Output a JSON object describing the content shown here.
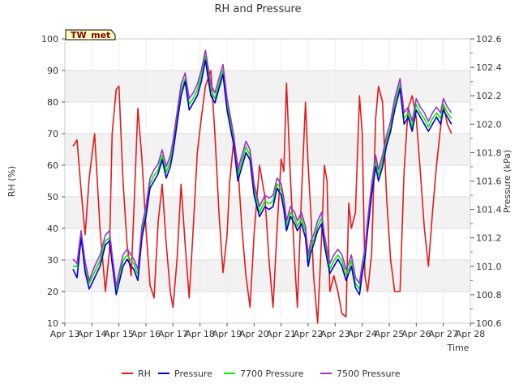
{
  "chart_data": {
    "type": "line",
    "title": "RH and Pressure",
    "xlabel": "Time",
    "ylabel_left": "RH (%)",
    "ylabel_right": "Pressure (kPa)",
    "badge": "TW_met",
    "x_ticks": [
      "Apr 13",
      "Apr 14",
      "Apr 15",
      "Apr 16",
      "Apr 17",
      "Apr 18",
      "Apr 19",
      "Apr 20",
      "Apr 21",
      "Apr 22",
      "Apr 23",
      "Apr 24",
      "Apr 25",
      "Apr 26",
      "Apr 27",
      "Apr 28"
    ],
    "xlim": [
      13,
      28
    ],
    "ylim_left": [
      10,
      100
    ],
    "ylim_right": [
      100.6,
      102.6
    ],
    "y_ticks_left": [
      10,
      20,
      30,
      40,
      50,
      60,
      70,
      80,
      90,
      100
    ],
    "y_ticks_right": [
      "100.6",
      "100.8",
      "101.0",
      "101.2",
      "101.4",
      "101.6",
      "101.8",
      "102.0",
      "102.2",
      "102.4",
      "102.6"
    ],
    "grid": true,
    "legend_position": "bottom",
    "series": [
      {
        "name": "RH",
        "axis": "left",
        "color": "#e41a1c",
        "x": [
          13.3,
          13.45,
          13.6,
          13.75,
          13.9,
          14.1,
          14.3,
          14.5,
          14.65,
          14.75,
          14.9,
          15.0,
          15.15,
          15.3,
          15.45,
          15.55,
          15.7,
          15.85,
          16.0,
          16.15,
          16.3,
          16.45,
          16.6,
          16.75,
          16.9,
          17.0,
          17.15,
          17.3,
          17.45,
          17.6,
          17.75,
          17.9,
          18.05,
          18.2,
          18.4,
          18.55,
          18.7,
          18.85,
          19.0,
          19.1,
          19.25,
          19.4,
          19.55,
          19.7,
          19.85,
          20.0,
          20.2,
          20.4,
          20.55,
          20.7,
          20.85,
          21.0,
          21.1,
          21.2,
          21.35,
          21.5,
          21.6,
          21.75,
          21.9,
          22.0,
          22.1,
          22.2,
          22.35,
          22.5,
          22.6,
          22.7,
          22.8,
          22.95,
          23.1,
          23.25,
          23.4,
          23.5,
          23.6,
          23.75,
          23.9,
          24.0,
          24.1,
          24.2,
          24.35,
          24.5,
          24.6,
          24.75,
          24.9,
          25.05,
          25.2,
          25.4,
          25.55,
          25.7,
          25.85,
          26.0,
          26.15,
          26.3,
          26.45,
          26.6,
          26.75,
          26.9,
          27.0,
          27.15,
          27.3
        ],
        "y": [
          66,
          68,
          52,
          38,
          56,
          70,
          40,
          20,
          33,
          70,
          84,
          85,
          55,
          35,
          25,
          45,
          78,
          62,
          40,
          22,
          18,
          42,
          54,
          35,
          20,
          15,
          30,
          54,
          35,
          18,
          40,
          64,
          75,
          85,
          90,
          70,
          45,
          26,
          38,
          55,
          68,
          60,
          40,
          25,
          15,
          38,
          60,
          50,
          30,
          15,
          40,
          62,
          58,
          86,
          55,
          30,
          15,
          50,
          80,
          60,
          45,
          25,
          10,
          38,
          60,
          55,
          20,
          25,
          20,
          13,
          12,
          48,
          40,
          45,
          82,
          70,
          25,
          20,
          32,
          75,
          85,
          80,
          50,
          30,
          20,
          20,
          58,
          78,
          82,
          75,
          58,
          40,
          28,
          45,
          60,
          72,
          79,
          73,
          70
        ]
      },
      {
        "name": "Pressure",
        "axis": "right",
        "color": "#0000cc",
        "x": [
          13.3,
          13.45,
          13.6,
          13.75,
          13.9,
          14.1,
          14.3,
          14.5,
          14.65,
          14.75,
          14.9,
          15.0,
          15.15,
          15.3,
          15.45,
          15.55,
          15.7,
          15.85,
          16.0,
          16.15,
          16.3,
          16.45,
          16.6,
          16.75,
          16.9,
          17.0,
          17.15,
          17.3,
          17.45,
          17.6,
          17.75,
          17.9,
          18.05,
          18.2,
          18.4,
          18.55,
          18.7,
          18.85,
          19.0,
          19.1,
          19.25,
          19.4,
          19.55,
          19.7,
          19.85,
          20.0,
          20.2,
          20.4,
          20.55,
          20.7,
          20.85,
          21.0,
          21.1,
          21.2,
          21.35,
          21.5,
          21.6,
          21.75,
          21.9,
          22.0,
          22.1,
          22.2,
          22.35,
          22.5,
          22.6,
          22.7,
          22.8,
          22.95,
          23.1,
          23.25,
          23.4,
          23.5,
          23.6,
          23.75,
          23.9,
          24.0,
          24.1,
          24.2,
          24.35,
          24.5,
          24.6,
          24.75,
          24.9,
          25.05,
          25.2,
          25.4,
          25.55,
          25.7,
          25.85,
          26.0,
          26.15,
          26.3,
          26.45,
          26.6,
          26.75,
          26.9,
          27.0,
          27.15,
          27.3
        ],
        "y": [
          100.98,
          100.92,
          101.2,
          100.96,
          100.84,
          100.92,
          101.0,
          101.15,
          101.18,
          101.02,
          100.8,
          100.88,
          101.0,
          101.05,
          101.0,
          100.98,
          100.9,
          101.2,
          101.35,
          101.55,
          101.6,
          101.65,
          101.75,
          101.62,
          101.7,
          101.8,
          102.0,
          102.2,
          102.3,
          102.1,
          102.15,
          102.2,
          102.3,
          102.45,
          102.2,
          102.15,
          102.25,
          102.35,
          102.1,
          102.0,
          101.85,
          101.6,
          101.7,
          101.8,
          101.75,
          101.5,
          101.35,
          101.42,
          101.4,
          101.42,
          101.55,
          101.5,
          101.4,
          101.25,
          101.35,
          101.3,
          101.25,
          101.3,
          101.2,
          101.0,
          101.1,
          101.15,
          101.25,
          101.3,
          101.15,
          101.05,
          100.95,
          101.0,
          101.05,
          101.0,
          100.9,
          100.95,
          101.0,
          100.85,
          100.8,
          100.95,
          101.05,
          101.25,
          101.5,
          101.7,
          101.6,
          101.7,
          101.85,
          101.95,
          102.1,
          102.25,
          102.0,
          102.05,
          101.95,
          102.1,
          102.05,
          102.0,
          101.95,
          102.0,
          102.05,
          102.0,
          102.1,
          102.05,
          102.0
        ]
      },
      {
        "name": "7700 Pressure",
        "axis": "right",
        "color": "#00ee00",
        "x": [
          13.3,
          13.45,
          13.6,
          13.75,
          13.9,
          14.1,
          14.3,
          14.5,
          14.65,
          14.75,
          14.9,
          15.0,
          15.15,
          15.3,
          15.45,
          15.55,
          15.7,
          15.85,
          16.0,
          16.15,
          16.3,
          16.45,
          16.6,
          16.75,
          16.9,
          17.0,
          17.15,
          17.3,
          17.45,
          17.6,
          17.75,
          17.9,
          18.05,
          18.2,
          18.4,
          18.55,
          18.7,
          18.85,
          19.0,
          19.1,
          19.25,
          19.4,
          19.55,
          19.7,
          19.85,
          20.0,
          20.2,
          20.4,
          20.55,
          20.7,
          20.85,
          21.0,
          21.1,
          21.2,
          21.35,
          21.5,
          21.6,
          21.75,
          21.9,
          22.0,
          22.1,
          22.2,
          22.35,
          22.5,
          22.6,
          22.7,
          22.8,
          22.95,
          23.1,
          23.25,
          23.4,
          23.5,
          23.6,
          23.75,
          23.9,
          24.0,
          24.1,
          24.2,
          24.35,
          24.5,
          24.6,
          24.75,
          24.9,
          25.05,
          25.2,
          25.4,
          25.55,
          25.7,
          25.85,
          26.0,
          26.15,
          26.3,
          26.45,
          26.6,
          26.75,
          26.9,
          27.0,
          27.15,
          27.3
        ],
        "y": [
          101.0,
          101.0,
          101.22,
          101.0,
          100.88,
          100.96,
          101.04,
          101.18,
          101.2,
          101.04,
          100.84,
          100.92,
          101.04,
          101.08,
          101.04,
          101.02,
          100.94,
          101.24,
          101.38,
          101.58,
          101.64,
          101.68,
          101.78,
          101.66,
          101.74,
          101.84,
          102.04,
          102.24,
          102.32,
          102.14,
          102.18,
          102.24,
          102.34,
          102.48,
          102.24,
          102.18,
          102.28,
          102.38,
          102.14,
          102.04,
          101.88,
          101.64,
          101.74,
          101.84,
          101.78,
          101.54,
          101.38,
          101.46,
          101.44,
          101.46,
          101.58,
          101.54,
          101.44,
          101.28,
          101.38,
          101.34,
          101.28,
          101.34,
          101.24,
          101.04,
          101.14,
          101.18,
          101.28,
          101.34,
          101.18,
          101.08,
          100.98,
          101.04,
          101.08,
          101.04,
          100.94,
          100.98,
          101.04,
          100.88,
          100.84,
          100.98,
          101.08,
          101.28,
          101.54,
          101.74,
          101.64,
          101.74,
          101.88,
          101.98,
          102.14,
          102.28,
          102.04,
          102.08,
          101.98,
          102.14,
          102.08,
          102.04,
          101.98,
          102.04,
          102.08,
          102.04,
          102.14,
          102.08,
          102.04
        ]
      },
      {
        "name": "7500 Pressure",
        "axis": "right",
        "color": "#9932cc",
        "x": [
          13.3,
          13.45,
          13.6,
          13.75,
          13.9,
          14.1,
          14.3,
          14.5,
          14.65,
          14.75,
          14.9,
          15.0,
          15.15,
          15.3,
          15.45,
          15.55,
          15.7,
          15.85,
          16.0,
          16.15,
          16.3,
          16.45,
          16.6,
          16.75,
          16.9,
          17.0,
          17.15,
          17.3,
          17.45,
          17.6,
          17.75,
          17.9,
          18.05,
          18.2,
          18.4,
          18.55,
          18.7,
          18.85,
          19.0,
          19.1,
          19.25,
          19.4,
          19.55,
          19.7,
          19.85,
          20.0,
          20.2,
          20.4,
          20.55,
          20.7,
          20.85,
          21.0,
          21.1,
          21.2,
          21.35,
          21.5,
          21.6,
          21.75,
          21.9,
          22.0,
          22.1,
          22.2,
          22.35,
          22.5,
          22.6,
          22.7,
          22.8,
          22.95,
          23.1,
          23.25,
          23.4,
          23.5,
          23.6,
          23.75,
          23.9,
          24.0,
          24.1,
          24.2,
          24.35,
          24.5,
          24.6,
          24.75,
          24.9,
          25.05,
          25.2,
          25.4,
          25.55,
          25.7,
          25.85,
          26.0,
          26.15,
          26.3,
          26.45,
          26.6,
          26.75,
          26.9,
          27.0,
          27.15,
          27.3
        ],
        "y": [
          101.05,
          101.02,
          101.25,
          101.03,
          100.9,
          101.0,
          101.08,
          101.22,
          101.25,
          101.08,
          100.86,
          100.95,
          101.08,
          101.12,
          101.08,
          101.05,
          100.98,
          101.28,
          101.42,
          101.62,
          101.68,
          101.72,
          101.82,
          101.7,
          101.78,
          101.88,
          102.08,
          102.28,
          102.36,
          102.18,
          102.22,
          102.28,
          102.38,
          102.52,
          102.28,
          102.22,
          102.32,
          102.42,
          102.18,
          102.08,
          101.92,
          101.68,
          101.78,
          101.88,
          101.82,
          101.58,
          101.42,
          101.5,
          101.48,
          101.5,
          101.62,
          101.58,
          101.48,
          101.32,
          101.42,
          101.38,
          101.32,
          101.38,
          101.28,
          101.08,
          101.18,
          101.22,
          101.32,
          101.38,
          101.22,
          101.12,
          101.02,
          101.08,
          101.12,
          101.08,
          100.98,
          101.02,
          101.08,
          100.92,
          100.88,
          101.02,
          101.12,
          101.32,
          101.58,
          101.78,
          101.68,
          101.78,
          101.92,
          102.02,
          102.18,
          102.32,
          102.08,
          102.12,
          102.02,
          102.18,
          102.12,
          102.08,
          102.02,
          102.08,
          102.12,
          102.08,
          102.18,
          102.12,
          102.08
        ]
      }
    ]
  }
}
